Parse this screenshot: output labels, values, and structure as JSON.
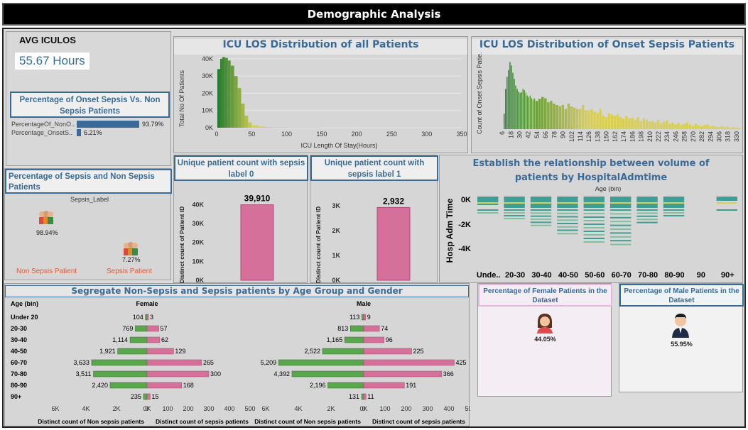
{
  "header": {
    "title": "Demographic Analysis"
  },
  "avg": {
    "label": "AVG ICULOS",
    "value": "55.67 Hours"
  },
  "pct_onset": {
    "title": "Percentage of Onset Sepsis Vs. Non Sepsis Patients",
    "rows": [
      {
        "label": "PercentageOf_NonO..",
        "value": "93.79%"
      },
      {
        "label": "Percentage_OnsetS..",
        "value": "6.21%"
      }
    ]
  },
  "pct_sepsis": {
    "title": "Percentage of Sepsis and Non Sepsis Patients",
    "header": "Sepsis_Label",
    "non_value": "98.94%",
    "sep_value": "7.27%",
    "non_label": "Non Sepsis Patient",
    "sep_label": "Sepsis Patient"
  },
  "colors": {
    "pink": "#d4709a",
    "green": "#5aa64c",
    "teal": "#3f9e93",
    "blue": "#3a6b98",
    "darkgreen": "#1e7a2c",
    "yellow": "#d9cf55",
    "red": "#e05a3a"
  },
  "chart_data": [
    {
      "id": "icu_los_all",
      "type": "area",
      "title": "ICU LOS Distribution of all Patients",
      "xlabel": "ICU Length Of Stay(Hours)",
      "ylabel": "Total No Of Patients",
      "xticks": [
        0,
        50,
        100,
        150,
        200,
        250,
        300,
        350
      ],
      "yticks": [
        "0K",
        "10K",
        "20K",
        "30K",
        "40K"
      ],
      "xlim": [
        0,
        350
      ],
      "ylim": [
        0,
        42000
      ],
      "x": [
        1,
        5,
        8,
        12,
        16,
        20,
        25,
        30,
        35,
        40,
        45,
        50,
        60,
        70,
        80,
        100,
        150,
        200,
        250,
        300
      ],
      "y": [
        34000,
        40000,
        41000,
        40500,
        39000,
        36000,
        30000,
        23000,
        14000,
        7000,
        3000,
        1400,
        700,
        400,
        250,
        150,
        80,
        40,
        20,
        10
      ]
    },
    {
      "id": "icu_los_onset",
      "type": "bar",
      "title": "ICU LOS Distribution of Onset Sepsis Patients",
      "ylabel": "Count of Onset Sepsis Patie..",
      "xticks": [
        "6",
        "18",
        "30",
        "42",
        "54",
        "66",
        "78",
        "90",
        "102",
        "114",
        "126",
        "138",
        "150",
        "162",
        "174",
        "186",
        "198",
        "210",
        "222",
        "234",
        "246",
        "258",
        "270",
        "282",
        "294",
        "306",
        "318",
        "330"
      ],
      "x": [
        6,
        8,
        10,
        12,
        14,
        16,
        18,
        20,
        22,
        24,
        26,
        28,
        30,
        32,
        34,
        36,
        38,
        40,
        42,
        44,
        46,
        48,
        50,
        54,
        58,
        62,
        66,
        70,
        74,
        78,
        82,
        86,
        90,
        94,
        98,
        102,
        106,
        110,
        114,
        118,
        122,
        126,
        130,
        134,
        138,
        142,
        146,
        150,
        154,
        158,
        162,
        166,
        170,
        174,
        178,
        182,
        186,
        190,
        194,
        198,
        202,
        206,
        210,
        214,
        218,
        222,
        226,
        230,
        234,
        238,
        242,
        246,
        250,
        254,
        258,
        262,
        266,
        270,
        274,
        278,
        282,
        286,
        290,
        294,
        298,
        302,
        306,
        310,
        314,
        318,
        322,
        326,
        330
      ],
      "y": [
        23,
        60,
        78,
        88,
        100,
        95,
        84,
        75,
        65,
        60,
        56,
        54,
        55,
        60,
        58,
        54,
        50,
        48,
        50,
        46,
        44,
        46,
        42,
        45,
        48,
        46,
        40,
        42,
        38,
        36,
        34,
        36,
        30,
        38,
        34,
        32,
        30,
        30,
        36,
        28,
        28,
        30,
        26,
        24,
        30,
        20,
        18,
        24,
        22,
        20,
        22,
        18,
        15,
        20,
        16,
        17,
        14,
        18,
        12,
        16,
        14,
        11,
        12,
        10,
        14,
        9,
        11,
        13,
        8,
        10,
        7,
        9,
        6,
        8,
        10,
        7,
        5,
        8,
        6,
        4,
        6,
        7,
        4,
        5,
        4,
        3,
        5,
        3,
        4,
        2,
        3,
        2,
        2
      ],
      "ylim": [
        0,
        110
      ]
    },
    {
      "id": "unique_label0",
      "type": "bar",
      "title": "Unique patient count with sepsis label 0",
      "ylabel": "Distinct count of Patient ID",
      "yticks": [
        "0K",
        "10K",
        "20K",
        "30K",
        "40K"
      ],
      "ylim": [
        0,
        42000
      ],
      "values": [
        39910
      ],
      "data_label": "39,910"
    },
    {
      "id": "unique_label1",
      "type": "bar",
      "title": "Unique patient count with sepsis label 1",
      "ylabel": "Distinct count of Patient ID",
      "yticks": [
        "0K",
        "1K",
        "2K",
        "3K"
      ],
      "ylim": [
        0,
        3200
      ],
      "values": [
        2932
      ],
      "data_label": "2,932"
    },
    {
      "id": "hosp_adm",
      "type": "heatmap",
      "title": "Establish the relationship between volume of patients by HospitalAdmtime",
      "xlabel": "Age (bin)",
      "ylabel": "Hosp Adm Time",
      "categories": [
        "Unde..",
        "20-30",
        "30-40",
        "40-50",
        "50-60",
        "60-70",
        "70-80",
        "80-90",
        "90",
        "90+"
      ],
      "yticks": [
        "0K",
        "-2K",
        "-4K"
      ],
      "depth": [
        0.3,
        0.6,
        1.0,
        1.3,
        1.6,
        1.7,
        0.9,
        0.5,
        0,
        0.15
      ]
    },
    {
      "id": "age_gender",
      "type": "bar",
      "title": "Segregate Non-Sepsis and Sepsis patients by Age Group and Gender",
      "row_header": "Age (bin)",
      "categories": [
        "Under 20",
        "20-30",
        "30-40",
        "40-50",
        "60-70",
        "70-80",
        "80-90",
        "90+"
      ],
      "female": {
        "label": "Female",
        "non_sepsis": [
          104,
          769,
          1114,
          1921,
          3633,
          3511,
          2420,
          235
        ],
        "sepsis": [
          3,
          57,
          62,
          129,
          265,
          300,
          168,
          15
        ],
        "non_labels": [
          "104",
          "769",
          "1,114",
          "1,921",
          "3,633",
          "3,511",
          "2,420",
          "235"
        ],
        "sep_labels": [
          "3",
          "57",
          "62",
          "129",
          "265",
          "300",
          "168",
          "15"
        ]
      },
      "male": {
        "label": "Male",
        "non_sepsis": [
          113,
          813,
          1165,
          2522,
          5209,
          4392,
          2196,
          131
        ],
        "sepsis": [
          9,
          74,
          96,
          225,
          425,
          366,
          191,
          11
        ],
        "non_labels": [
          "113",
          "813",
          "1,165",
          "2,522",
          "5,209",
          "4,392",
          "2,196",
          "131"
        ],
        "sep_labels": [
          "9",
          "74",
          "96",
          "225",
          "425",
          "366",
          "191",
          "11"
        ]
      },
      "xlabel_non": "Distinct count of Non sepsis patients",
      "xlabel_sep": "Distinct count of sepsis patients",
      "non_ticks": [
        "6K",
        "4K",
        "2K",
        "0K"
      ],
      "sep_ticks": [
        "0",
        "100",
        "200",
        "300",
        "400",
        "500"
      ]
    }
  ],
  "female_pct": {
    "title": "Percentage of Female Patients in the Dataset",
    "value": "44.05%"
  },
  "male_pct": {
    "title": "Percentage of Male Patients in the Dataset",
    "value": "55.95%"
  }
}
